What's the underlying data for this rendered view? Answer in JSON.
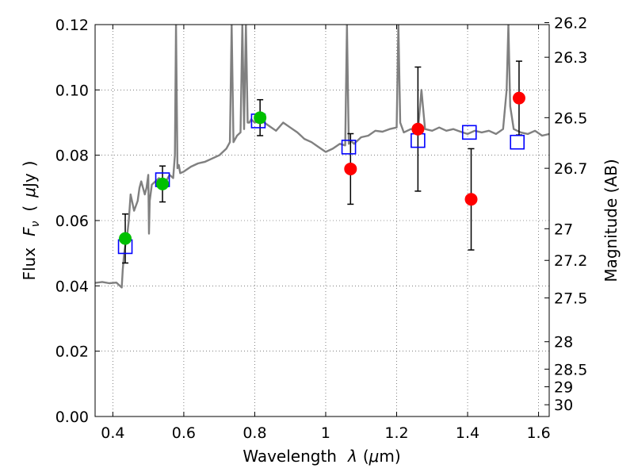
{
  "chart_data": {
    "type": "scatter",
    "xlabel": "Wavelength",
    "xlabel_symbol": "λ",
    "xlabel_unit_open": "(",
    "xlabel_unit_mu": "μ",
    "xlabel_unit_rest": "m)",
    "ylabel": "Flux",
    "ylabel_symbol": "F",
    "ylabel_symbol_sub": "ν",
    "ylabel_unit_open": "(",
    "ylabel_unit_mu": "μ",
    "ylabel_unit_rest": "Jy",
    "ylabel_unit_close": ")",
    "y2label": "Magnitude (AB)",
    "xlim": [
      0.35,
      1.63
    ],
    "ylim": [
      0.0,
      0.12
    ],
    "grid": true,
    "x_ticks": [
      {
        "value": 0.4,
        "label": "0.4"
      },
      {
        "value": 0.6,
        "label": "0.6"
      },
      {
        "value": 0.8,
        "label": "0.8"
      },
      {
        "value": 1.0,
        "label": "1"
      },
      {
        "value": 1.2,
        "label": "1.2"
      },
      {
        "value": 1.4,
        "label": "1.4"
      },
      {
        "value": 1.6,
        "label": "1.6"
      }
    ],
    "y_ticks": [
      {
        "value": 0.0,
        "label": "0.00"
      },
      {
        "value": 0.02,
        "label": "0.02"
      },
      {
        "value": 0.04,
        "label": "0.04"
      },
      {
        "value": 0.06,
        "label": "0.06"
      },
      {
        "value": 0.08,
        "label": "0.08"
      },
      {
        "value": 0.1,
        "label": "0.10"
      },
      {
        "value": 0.12,
        "label": "0.12"
      }
    ],
    "y2_ticks": [
      {
        "flux": 0.1206,
        "label": "26.2"
      },
      {
        "flux": 0.11,
        "label": "26.3"
      },
      {
        "flux": 0.0915,
        "label": "26.5"
      },
      {
        "flux": 0.076,
        "label": "26.7"
      },
      {
        "flux": 0.0575,
        "label": "27"
      },
      {
        "flux": 0.0478,
        "label": "27.2"
      },
      {
        "flux": 0.0363,
        "label": "27.5"
      },
      {
        "flux": 0.0229,
        "label": "28"
      },
      {
        "flux": 0.0145,
        "label": "28.5"
      },
      {
        "flux": 0.0091,
        "label": "29"
      },
      {
        "flux": 0.0036,
        "label": "30"
      }
    ],
    "series": [
      {
        "kind": "spectrum",
        "color": "#808080",
        "x": [
          0.35,
          0.37,
          0.39,
          0.41,
          0.425,
          0.428,
          0.432,
          0.436,
          0.44,
          0.445,
          0.45,
          0.46,
          0.47,
          0.475,
          0.48,
          0.49,
          0.495,
          0.5,
          0.502,
          0.504,
          0.51,
          0.52,
          0.53,
          0.54,
          0.55,
          0.56,
          0.57,
          0.575,
          0.578,
          0.582,
          0.586,
          0.59,
          0.6,
          0.62,
          0.64,
          0.66,
          0.68,
          0.7,
          0.72,
          0.73,
          0.735,
          0.74,
          0.75,
          0.76,
          0.765,
          0.77,
          0.775,
          0.78,
          0.785,
          0.79,
          0.8,
          0.82,
          0.84,
          0.86,
          0.88,
          0.9,
          0.92,
          0.94,
          0.96,
          0.98,
          1.0,
          1.02,
          1.04,
          1.055,
          1.06,
          1.065,
          1.07,
          1.08,
          1.1,
          1.12,
          1.14,
          1.16,
          1.18,
          1.2,
          1.205,
          1.21,
          1.22,
          1.24,
          1.26,
          1.27,
          1.28,
          1.3,
          1.32,
          1.34,
          1.36,
          1.38,
          1.4,
          1.42,
          1.44,
          1.46,
          1.48,
          1.5,
          1.51,
          1.515,
          1.52,
          1.53,
          1.55,
          1.57,
          1.59,
          1.61,
          1.63
        ],
        "y": [
          0.0409,
          0.0412,
          0.0408,
          0.041,
          0.0395,
          0.045,
          0.05,
          0.053,
          0.055,
          0.06,
          0.068,
          0.063,
          0.066,
          0.07,
          0.072,
          0.068,
          0.07,
          0.074,
          0.056,
          0.066,
          0.071,
          0.072,
          0.073,
          0.0705,
          0.072,
          0.074,
          0.073,
          0.08,
          0.12,
          0.076,
          0.077,
          0.0745,
          0.075,
          0.0765,
          0.0775,
          0.078,
          0.079,
          0.08,
          0.082,
          0.084,
          0.12,
          0.084,
          0.086,
          0.087,
          0.12,
          0.088,
          0.12,
          0.09,
          0.09,
          0.091,
          0.09,
          0.0905,
          0.089,
          0.0875,
          0.09,
          0.0885,
          0.087,
          0.085,
          0.084,
          0.0825,
          0.081,
          0.082,
          0.0835,
          0.083,
          0.12,
          0.0835,
          0.0845,
          0.0835,
          0.0855,
          0.086,
          0.0875,
          0.0872,
          0.088,
          0.0885,
          0.12,
          0.09,
          0.087,
          0.088,
          0.0875,
          0.1,
          0.088,
          0.0875,
          0.0885,
          0.0875,
          0.088,
          0.0872,
          0.0865,
          0.0875,
          0.087,
          0.0875,
          0.0865,
          0.088,
          0.1,
          0.12,
          0.095,
          0.088,
          0.087,
          0.0865,
          0.0875,
          0.086,
          0.0865
        ]
      },
      {
        "name": "",
        "kind": "model-photometry",
        "marker": "open-square",
        "color": "#0000ff",
        "x": [
          0.435,
          0.54,
          0.81,
          1.065,
          1.26,
          1.405,
          1.54
        ],
        "y": [
          0.052,
          0.0725,
          0.0905,
          0.0825,
          0.0845,
          0.087,
          0.084
        ]
      },
      {
        "name": "",
        "kind": "observed-green",
        "marker": "filled-circle",
        "color": "#00c000",
        "x": [
          0.435,
          0.54,
          0.815
        ],
        "y": [
          0.0545,
          0.0712,
          0.0915
        ],
        "yerr": [
          0.0075,
          0.0055,
          0.0055
        ]
      },
      {
        "name": "",
        "kind": "observed-red",
        "marker": "filled-circle",
        "color": "#ff0000",
        "x": [
          1.07,
          1.26,
          1.41,
          1.545
        ],
        "y": [
          0.0758,
          0.088,
          0.0665,
          0.0975
        ],
        "yerr": [
          0.0108,
          0.019,
          0.0155,
          0.0113
        ]
      }
    ]
  }
}
